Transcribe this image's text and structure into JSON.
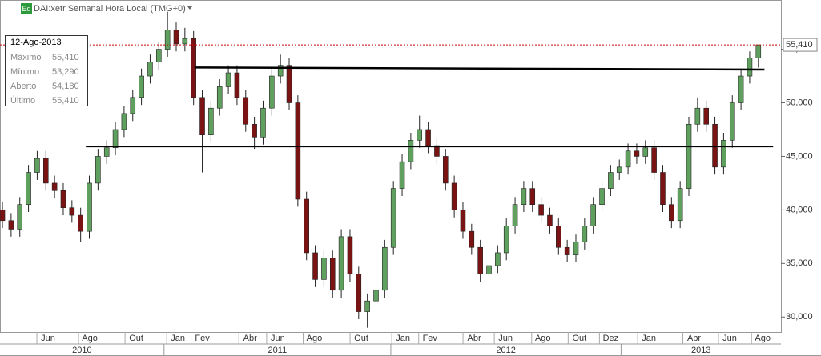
{
  "chart_data": {
    "type": "candlestick",
    "title": "DAI:xetr Semanal Hora Local (TMG+0)",
    "icon_label": "Eq",
    "up_color": "#5fa05f",
    "down_color": "#7a1414",
    "ohlc": [
      [
        40000,
        40700,
        38300,
        39000
      ],
      [
        39000,
        39700,
        37500,
        38200
      ],
      [
        38200,
        41200,
        37500,
        40500
      ],
      [
        40500,
        44200,
        39800,
        43500
      ],
      [
        43500,
        45500,
        42800,
        44800
      ],
      [
        44800,
        45500,
        41800,
        42500
      ],
      [
        42500,
        43200,
        41100,
        41800
      ],
      [
        41800,
        42500,
        39500,
        40200
      ],
      [
        40200,
        40900,
        38800,
        39500
      ],
      [
        39500,
        40200,
        37000,
        38000
      ],
      [
        38000,
        43200,
        37300,
        42500
      ],
      [
        42500,
        45700,
        41800,
        45000
      ],
      [
        45000,
        46500,
        44300,
        45800
      ],
      [
        45800,
        48200,
        45100,
        47500
      ],
      [
        47500,
        49700,
        46800,
        49000
      ],
      [
        49000,
        51200,
        48300,
        50500
      ],
      [
        50500,
        53200,
        49800,
        52500
      ],
      [
        52500,
        54500,
        51800,
        53800
      ],
      [
        53800,
        55700,
        53100,
        55000
      ],
      [
        55000,
        58500,
        54300,
        56800
      ],
      [
        56800,
        57500,
        54800,
        55500
      ],
      [
        55500,
        57000,
        54800,
        56000
      ],
      [
        56000,
        56700,
        49800,
        50500
      ],
      [
        50500,
        51200,
        43500,
        47000
      ],
      [
        47000,
        50200,
        46300,
        49500
      ],
      [
        49500,
        52200,
        48800,
        51500
      ],
      [
        51500,
        53500,
        50800,
        52800
      ],
      [
        52800,
        53500,
        49800,
        50500
      ],
      [
        50500,
        51200,
        47300,
        48000
      ],
      [
        48000,
        48700,
        45700,
        46800
      ],
      [
        46800,
        50200,
        46100,
        49500
      ],
      [
        49500,
        53200,
        48800,
        52500
      ],
      [
        52500,
        54500,
        51800,
        53500
      ],
      [
        53500,
        54200,
        49300,
        50000
      ],
      [
        50000,
        50700,
        40300,
        41000
      ],
      [
        41000,
        41700,
        35300,
        36000
      ],
      [
        36000,
        36700,
        32800,
        33500
      ],
      [
        33500,
        36200,
        32800,
        35500
      ],
      [
        35500,
        36200,
        31800,
        32500
      ],
      [
        32500,
        38200,
        31800,
        37500
      ],
      [
        37500,
        38200,
        33300,
        34000
      ],
      [
        34000,
        34700,
        29800,
        30500
      ],
      [
        30500,
        32200,
        29000,
        31500
      ],
      [
        31500,
        33200,
        30800,
        32500
      ],
      [
        32500,
        37200,
        31800,
        36500
      ],
      [
        36500,
        42700,
        35800,
        42000
      ],
      [
        42000,
        45200,
        41300,
        44500
      ],
      [
        44500,
        47200,
        43800,
        46500
      ],
      [
        46500,
        48800,
        45800,
        47500
      ],
      [
        47500,
        48200,
        45300,
        46000
      ],
      [
        46000,
        46700,
        44300,
        45000
      ],
      [
        45000,
        45700,
        41800,
        42500
      ],
      [
        42500,
        43200,
        39300,
        40000
      ],
      [
        40000,
        40700,
        37300,
        38000
      ],
      [
        38000,
        38700,
        35800,
        36500
      ],
      [
        36500,
        37200,
        33300,
        34000
      ],
      [
        34000,
        35500,
        33300,
        34800
      ],
      [
        34800,
        36700,
        34100,
        36000
      ],
      [
        36000,
        39200,
        35300,
        38500
      ],
      [
        38500,
        41200,
        37800,
        40500
      ],
      [
        40500,
        42700,
        39800,
        42000
      ],
      [
        42000,
        42700,
        39800,
        40500
      ],
      [
        40500,
        41200,
        38800,
        39500
      ],
      [
        39500,
        40200,
        37800,
        38500
      ],
      [
        38500,
        39200,
        35800,
        36500
      ],
      [
        36500,
        37200,
        35100,
        35800
      ],
      [
        35800,
        37700,
        35100,
        37000
      ],
      [
        37000,
        39200,
        36300,
        38500
      ],
      [
        38500,
        41200,
        37800,
        40500
      ],
      [
        40500,
        42700,
        39800,
        42000
      ],
      [
        42000,
        44200,
        41300,
        43500
      ],
      [
        43500,
        44700,
        42800,
        44000
      ],
      [
        44000,
        46200,
        43300,
        45500
      ],
      [
        45500,
        46200,
        44300,
        45000
      ],
      [
        45000,
        46500,
        44300,
        45800
      ],
      [
        45800,
        46500,
        42800,
        43500
      ],
      [
        43500,
        44200,
        39800,
        40500
      ],
      [
        40500,
        41200,
        38300,
        39000
      ],
      [
        39000,
        42700,
        38300,
        42000
      ],
      [
        42000,
        48700,
        41300,
        48000
      ],
      [
        48000,
        50500,
        47300,
        49500
      ],
      [
        49500,
        50200,
        47300,
        48000
      ],
      [
        48000,
        48700,
        43300,
        44000
      ],
      [
        44000,
        47200,
        43300,
        46500
      ],
      [
        46500,
        50700,
        45800,
        50000
      ],
      [
        50000,
        53200,
        49300,
        52500
      ],
      [
        52500,
        54800,
        51800,
        54180
      ],
      [
        54180,
        55410,
        53290,
        55410
      ]
    ],
    "ylim": [
      28600,
      59600
    ],
    "yticks": [
      {
        "value": 30000,
        "label": "30,000"
      },
      {
        "value": 35000,
        "label": "35,000"
      },
      {
        "value": 40000,
        "label": "40,000"
      },
      {
        "value": 45000,
        "label": "45,000"
      },
      {
        "value": 50000,
        "label": "50,000"
      },
      {
        "value": 55000,
        "label": "55,000"
      }
    ],
    "xlim": [
      -0.28,
      89.6
    ],
    "xticks": [
      {
        "value": 5.25,
        "label": "Jun"
      },
      {
        "value": 10.05,
        "label": "Ago"
      },
      {
        "value": 15.4,
        "label": "Out"
      },
      {
        "value": 20.2,
        "label": "Jan"
      },
      {
        "value": 23.0,
        "label": "Fev"
      },
      {
        "value": 28.5,
        "label": "Abr"
      },
      {
        "value": 31.7,
        "label": "Jun"
      },
      {
        "value": 35.9,
        "label": "Ago"
      },
      {
        "value": 41.3,
        "label": "Out"
      },
      {
        "value": 46.1,
        "label": "Jan"
      },
      {
        "value": 49.2,
        "label": "Fev"
      },
      {
        "value": 54.3,
        "label": "Abr"
      },
      {
        "value": 57.9,
        "label": "Jun"
      },
      {
        "value": 62.2,
        "label": "Ago"
      },
      {
        "value": 66.4,
        "label": "Out"
      },
      {
        "value": 70.0,
        "label": "Dez"
      },
      {
        "value": 74.4,
        "label": "Jan"
      },
      {
        "value": 79.6,
        "label": "Abr"
      },
      {
        "value": 83.7,
        "label": "Jun"
      },
      {
        "value": 87.5,
        "label": "Ago"
      }
    ],
    "years": [
      "2010",
      "2011",
      "2012",
      "2013"
    ],
    "year_breaks": [
      18.6,
      44.7,
      71.2
    ],
    "trend_lines": [
      {
        "x": [
          9.6,
          88.7
        ],
        "y": [
          45900,
          45900
        ],
        "width": 1.5
      },
      {
        "x": [
          22.1,
          87.7
        ],
        "y": [
          53300,
          53100
        ],
        "width": 2.5
      }
    ],
    "last_label": "55,410",
    "info": {
      "date": "12-Ago-2013",
      "rows": [
        [
          "Máximo",
          "55,410"
        ],
        [
          "Mínimo",
          "53,290"
        ],
        [
          "Aberto",
          "54,180"
        ],
        [
          "Último",
          "55,410"
        ]
      ]
    }
  }
}
